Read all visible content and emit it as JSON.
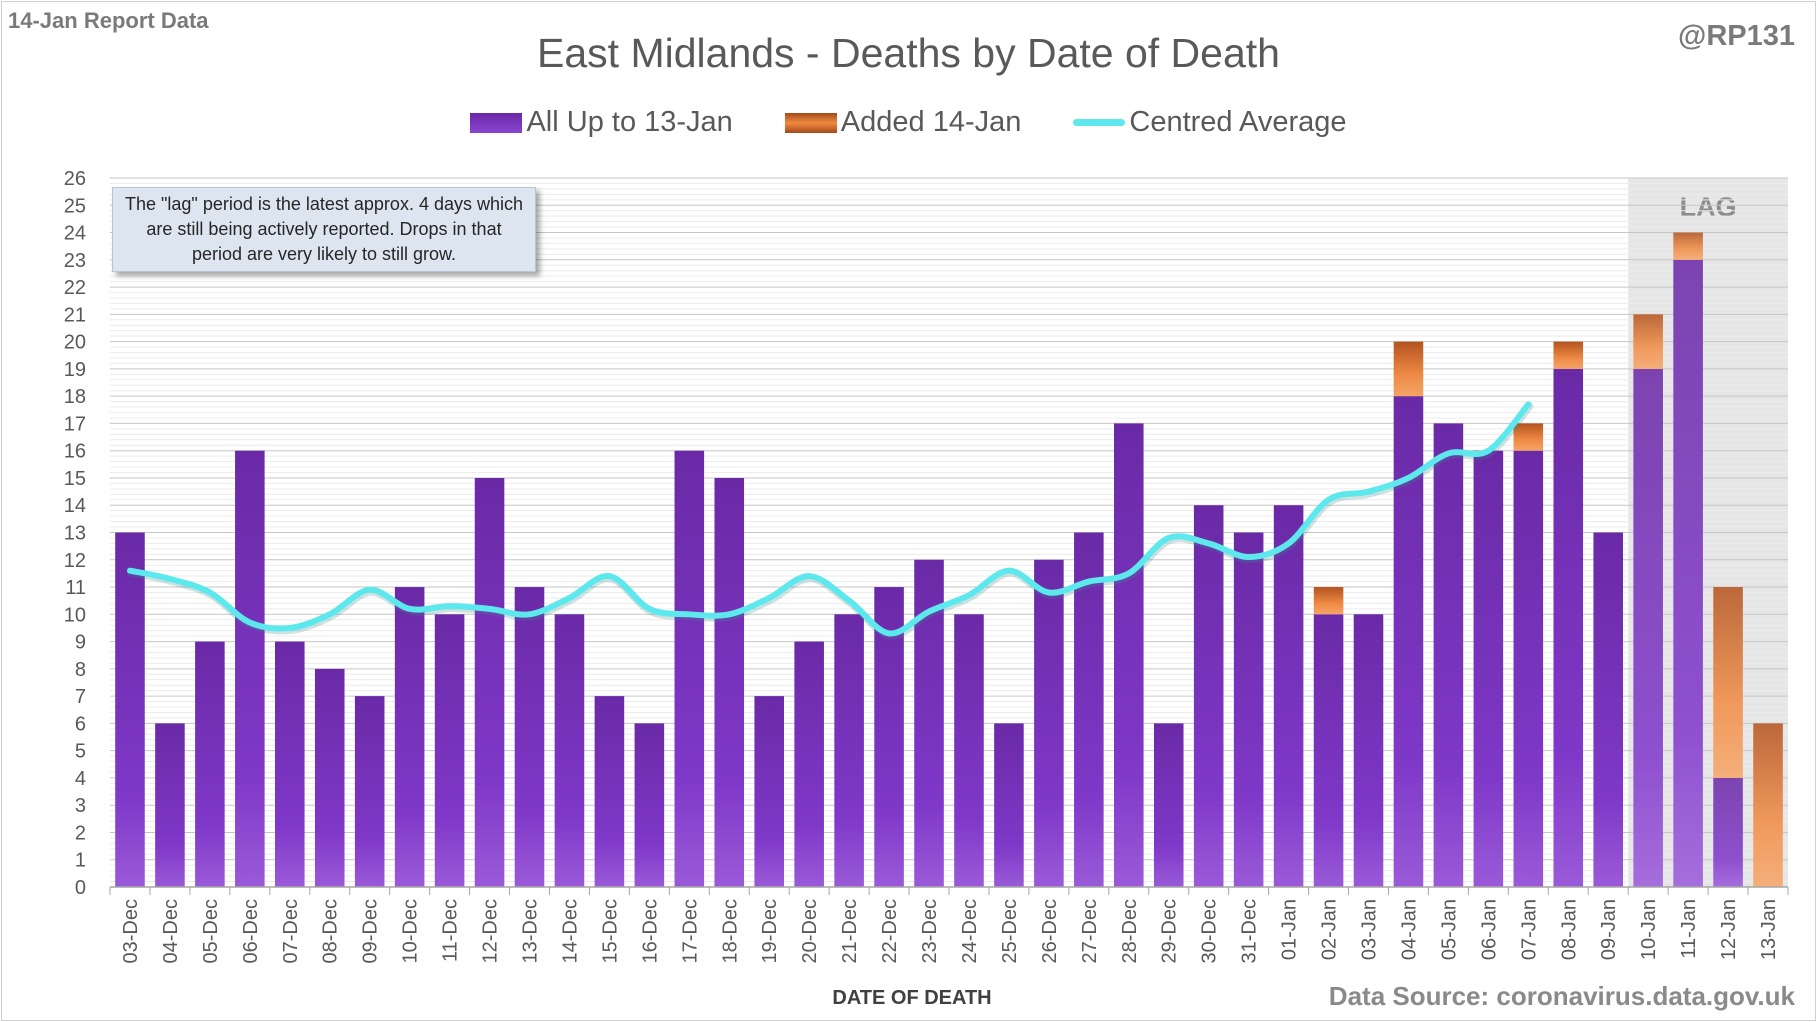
{
  "header": {
    "report_tag": "14-Jan Report Data",
    "handle": "@RP131",
    "title": "East Midlands - Deaths by Date of Death"
  },
  "note": {
    "text": "The \"lag\" period is the latest approx. 4 days which are still being actively reported.  Drops in that period are very likely to still grow."
  },
  "footer": {
    "source": "Data Source: coronavirus.data.gov.uk"
  },
  "colors": {
    "base_bar": "#7a34c2",
    "added_bar": "#e07b39",
    "average_line": "#5de8ee",
    "lag_shade": "#e6e6e6"
  },
  "chart_data": {
    "type": "bar",
    "stacked": true,
    "categories": [
      "03-Dec",
      "04-Dec",
      "05-Dec",
      "06-Dec",
      "07-Dec",
      "08-Dec",
      "09-Dec",
      "10-Dec",
      "11-Dec",
      "12-Dec",
      "13-Dec",
      "14-Dec",
      "15-Dec",
      "16-Dec",
      "17-Dec",
      "18-Dec",
      "19-Dec",
      "20-Dec",
      "21-Dec",
      "22-Dec",
      "23-Dec",
      "24-Dec",
      "25-Dec",
      "26-Dec",
      "27-Dec",
      "28-Dec",
      "29-Dec",
      "30-Dec",
      "31-Dec",
      "01-Jan",
      "02-Jan",
      "03-Jan",
      "04-Jan",
      "05-Jan",
      "06-Jan",
      "07-Jan",
      "08-Jan",
      "09-Jan",
      "10-Jan",
      "11-Jan",
      "12-Jan",
      "13-Jan"
    ],
    "series": [
      {
        "name": "All Up to 13-Jan",
        "values": [
          13,
          6,
          9,
          16,
          9,
          8,
          7,
          11,
          10,
          15,
          11,
          10,
          7,
          6,
          16,
          15,
          7,
          9,
          10,
          11,
          12,
          10,
          6,
          12,
          13,
          17,
          6,
          14,
          13,
          14,
          10,
          10,
          18,
          17,
          16,
          16,
          19,
          13,
          19,
          23,
          4,
          0
        ]
      },
      {
        "name": "Added 14-Jan",
        "values": [
          0,
          0,
          0,
          0,
          0,
          0,
          0,
          0,
          0,
          0,
          0,
          0,
          0,
          0,
          0,
          0,
          0,
          0,
          0,
          0,
          0,
          0,
          0,
          0,
          0,
          0,
          0,
          0,
          0,
          0,
          1,
          0,
          2,
          0,
          0,
          1,
          1,
          0,
          2,
          1,
          7,
          6
        ]
      },
      {
        "name": "Centred Average",
        "type": "line",
        "values": [
          11.6,
          11.3,
          10.8,
          9.7,
          9.5,
          10.0,
          10.9,
          10.2,
          10.3,
          10.2,
          10.0,
          10.6,
          11.4,
          10.2,
          10.0,
          10.0,
          10.6,
          11.4,
          10.5,
          9.3,
          10.1,
          10.7,
          11.6,
          10.8,
          11.2,
          11.5,
          12.8,
          12.6,
          12.1,
          12.6,
          14.2,
          14.5,
          15.0,
          15.9,
          16.0,
          17.7,
          null,
          null,
          null,
          null,
          null,
          null
        ]
      }
    ],
    "xlabel": "DATE OF DEATH",
    "ylabel": "",
    "ylim": [
      0,
      26
    ],
    "yticks": [
      0,
      1,
      2,
      3,
      4,
      5,
      6,
      7,
      8,
      9,
      10,
      11,
      12,
      13,
      14,
      15,
      16,
      17,
      18,
      19,
      20,
      21,
      22,
      23,
      24,
      25,
      26
    ],
    "grid": true,
    "legend_position": "top",
    "lag_label": "LAG",
    "lag_categories": [
      "10-Jan",
      "11-Jan",
      "12-Jan",
      "13-Jan"
    ]
  }
}
